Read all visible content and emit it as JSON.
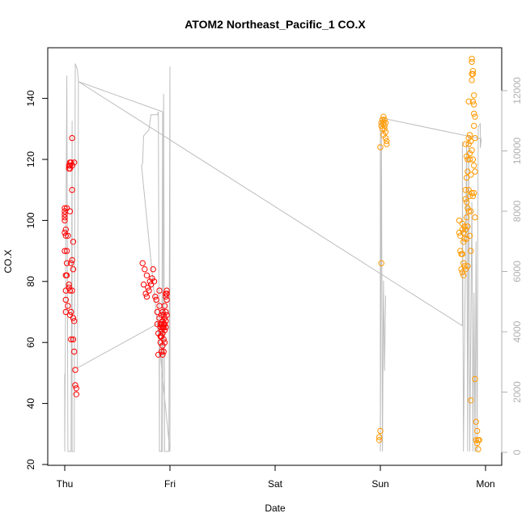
{
  "chart_data": {
    "type": "scatter",
    "title": "ATOM2 Northeast_Pacific_1 CO.X",
    "xlabel": "Date",
    "ylabel": "CO.X",
    "x_ticks": [
      "Thu",
      "Fri",
      "Sat",
      "Sun",
      "Mon"
    ],
    "ylim": [
      20,
      155
    ],
    "y_ticks": [
      20,
      40,
      60,
      80,
      100,
      120,
      140
    ],
    "y2lim": [
      -200,
      13000
    ],
    "y2_ticks": [
      0,
      2000,
      4000,
      6000,
      8000,
      10000,
      12000
    ],
    "colors": {
      "series_a": "#ff0000",
      "series_b": "#ff9900",
      "line": "#bebebe",
      "axis": "#000000",
      "right_axis": "#b0b0b0"
    },
    "series": [
      {
        "color": "#ff0000",
        "points": [
          [
            0.0,
            104
          ],
          [
            0.0,
            103
          ],
          [
            0.0,
            102
          ],
          [
            0.0,
            101
          ],
          [
            0.0,
            100
          ],
          [
            0.0,
            96
          ],
          [
            0.0,
            90
          ],
          [
            0.01,
            97
          ],
          [
            0.01,
            95
          ],
          [
            0.01,
            82
          ],
          [
            0.01,
            77
          ],
          [
            0.01,
            74
          ],
          [
            0.01,
            70
          ],
          [
            0.02,
            104
          ],
          [
            0.02,
            90
          ],
          [
            0.02,
            86
          ],
          [
            0.02,
            82
          ],
          [
            0.03,
            95
          ],
          [
            0.03,
            72
          ],
          [
            0.04,
            118
          ],
          [
            0.04,
            117
          ],
          [
            0.04,
            79
          ],
          [
            0.04,
            78
          ],
          [
            0.05,
            119
          ],
          [
            0.05,
            118
          ],
          [
            0.05,
            117
          ],
          [
            0.05,
            103
          ],
          [
            0.05,
            77
          ],
          [
            0.05,
            69
          ],
          [
            0.06,
            119
          ],
          [
            0.06,
            86
          ],
          [
            0.06,
            70
          ],
          [
            0.06,
            61
          ],
          [
            0.07,
            127
          ],
          [
            0.07,
            118
          ],
          [
            0.07,
            110
          ],
          [
            0.07,
            87
          ],
          [
            0.07,
            77
          ],
          [
            0.08,
            93
          ],
          [
            0.08,
            84
          ],
          [
            0.08,
            68
          ],
          [
            0.08,
            61
          ],
          [
            0.09,
            119
          ],
          [
            0.09,
            67
          ],
          [
            0.09,
            57
          ],
          [
            0.1,
            51
          ],
          [
            0.1,
            46
          ],
          [
            0.11,
            45
          ],
          [
            0.11,
            43
          ],
          [
            0.74,
            86
          ],
          [
            0.75,
            79
          ],
          [
            0.76,
            84
          ],
          [
            0.77,
            76
          ],
          [
            0.78,
            75
          ],
          [
            0.78,
            82
          ],
          [
            0.79,
            78
          ],
          [
            0.8,
            77
          ],
          [
            0.81,
            80
          ],
          [
            0.82,
            79
          ],
          [
            0.83,
            81
          ],
          [
            0.84,
            84
          ],
          [
            0.85,
            80
          ],
          [
            0.86,
            75
          ],
          [
            0.87,
            74
          ],
          [
            0.88,
            70
          ],
          [
            0.88,
            66
          ],
          [
            0.89,
            63
          ],
          [
            0.89,
            56
          ],
          [
            0.9,
            77
          ],
          [
            0.9,
            72
          ],
          [
            0.9,
            68
          ],
          [
            0.91,
            66
          ],
          [
            0.91,
            65
          ],
          [
            0.91,
            62
          ],
          [
            0.91,
            60
          ],
          [
            0.92,
            69
          ],
          [
            0.92,
            66
          ],
          [
            0.92,
            64
          ],
          [
            0.92,
            62
          ],
          [
            0.92,
            57
          ],
          [
            0.93,
            70
          ],
          [
            0.93,
            67
          ],
          [
            0.93,
            65
          ],
          [
            0.93,
            63
          ],
          [
            0.93,
            59
          ],
          [
            0.93,
            56
          ],
          [
            0.94,
            69
          ],
          [
            0.94,
            66
          ],
          [
            0.94,
            65
          ],
          [
            0.94,
            61
          ],
          [
            0.94,
            57
          ],
          [
            0.95,
            72
          ],
          [
            0.95,
            68
          ],
          [
            0.95,
            66
          ],
          [
            0.95,
            64
          ],
          [
            0.95,
            60
          ],
          [
            0.96,
            76
          ],
          [
            0.96,
            75
          ],
          [
            0.96,
            70
          ],
          [
            0.96,
            67
          ],
          [
            0.96,
            65
          ],
          [
            0.97,
            77
          ],
          [
            0.97,
            76
          ],
          [
            0.97,
            74
          ],
          [
            0.97,
            69
          ]
        ]
      },
      {
        "color": "#ff9900",
        "points": [
          [
            2.99,
            29
          ],
          [
            2.99,
            28
          ],
          [
            3.0,
            31
          ],
          [
            3.01,
            86
          ],
          [
            3.0,
            124
          ],
          [
            3.01,
            131
          ],
          [
            3.01,
            132
          ],
          [
            3.02,
            133
          ],
          [
            3.02,
            130
          ],
          [
            3.03,
            134
          ],
          [
            3.03,
            132
          ],
          [
            3.03,
            128
          ],
          [
            3.04,
            133
          ],
          [
            3.04,
            131
          ],
          [
            3.05,
            129
          ],
          [
            3.05,
            127
          ],
          [
            3.06,
            126
          ],
          [
            3.06,
            125
          ],
          [
            3.05,
            132
          ],
          [
            3.04,
            130
          ],
          [
            3.75,
            100
          ],
          [
            3.75,
            96
          ],
          [
            3.76,
            95
          ],
          [
            3.76,
            90
          ],
          [
            3.77,
            89
          ],
          [
            3.77,
            84
          ],
          [
            3.78,
            99
          ],
          [
            3.78,
            97
          ],
          [
            3.78,
            89
          ],
          [
            3.78,
            83
          ],
          [
            3.79,
            96
          ],
          [
            3.79,
            93
          ],
          [
            3.79,
            86
          ],
          [
            3.79,
            82
          ],
          [
            3.8,
            98
          ],
          [
            3.8,
            94
          ],
          [
            3.8,
            85
          ],
          [
            3.81,
            125
          ],
          [
            3.81,
            110
          ],
          [
            3.81,
            107
          ],
          [
            3.81,
            97
          ],
          [
            3.81,
            84
          ],
          [
            3.82,
            121
          ],
          [
            3.82,
            114
          ],
          [
            3.82,
            106
          ],
          [
            3.82,
            101
          ],
          [
            3.82,
            94
          ],
          [
            3.83,
            120
          ],
          [
            3.83,
            116
          ],
          [
            3.83,
            104
          ],
          [
            3.83,
            98
          ],
          [
            3.83,
            85
          ],
          [
            3.84,
            139
          ],
          [
            3.84,
            127
          ],
          [
            3.84,
            125
          ],
          [
            3.84,
            110
          ],
          [
            3.84,
            103
          ],
          [
            3.85,
            128
          ],
          [
            3.85,
            122
          ],
          [
            3.85,
            120
          ],
          [
            3.85,
            108
          ],
          [
            3.85,
            95
          ],
          [
            3.86,
            126
          ],
          [
            3.86,
            115
          ],
          [
            3.86,
            103
          ],
          [
            3.86,
            90
          ],
          [
            3.86,
            41
          ],
          [
            3.87,
            153
          ],
          [
            3.87,
            152
          ],
          [
            3.87,
            148
          ],
          [
            3.87,
            146
          ],
          [
            3.87,
            123
          ],
          [
            3.87,
            109
          ],
          [
            3.88,
            149
          ],
          [
            3.88,
            148
          ],
          [
            3.88,
            139
          ],
          [
            3.88,
            120
          ],
          [
            3.88,
            108
          ],
          [
            3.89,
            141
          ],
          [
            3.89,
            138
          ],
          [
            3.89,
            135
          ],
          [
            3.89,
            131
          ],
          [
            3.89,
            118
          ],
          [
            3.89,
            109
          ],
          [
            3.9,
            134
          ],
          [
            3.9,
            127
          ],
          [
            3.9,
            116
          ],
          [
            3.9,
            101
          ],
          [
            3.9,
            48
          ],
          [
            3.91,
            34
          ],
          [
            3.91,
            28
          ],
          [
            3.92,
            31
          ],
          [
            3.92,
            27
          ],
          [
            3.93,
            28
          ],
          [
            3.93,
            25
          ],
          [
            3.94,
            28
          ]
        ]
      }
    ],
    "line": {
      "axis": "right",
      "color": "#bebebe",
      "points": [
        [
          0.0,
          2600
        ],
        [
          0.0,
          30
        ],
        [
          0.02,
          12500
        ],
        [
          0.03,
          30
        ],
        [
          0.06,
          30
        ],
        [
          0.07,
          11000
        ],
        [
          0.07,
          30
        ],
        [
          0.09,
          30
        ],
        [
          0.1,
          12900
        ],
        [
          0.12,
          12700
        ],
        [
          0.13,
          12300
        ],
        [
          0.12,
          2800
        ],
        [
          0.9,
          4300
        ],
        [
          0.9,
          30
        ],
        [
          0.93,
          30
        ],
        [
          0.94,
          11900
        ],
        [
          0.95,
          30
        ],
        [
          0.99,
          30
        ],
        [
          1.0,
          12800
        ],
        [
          1.0,
          30
        ],
        [
          0.73,
          9500
        ],
        [
          0.74,
          9600
        ],
        [
          0.75,
          10500
        ],
        [
          0.8,
          10700
        ],
        [
          0.82,
          11200
        ],
        [
          0.86,
          11200
        ],
        [
          0.88,
          11200
        ],
        [
          0.89,
          11300
        ],
        [
          0.9,
          30
        ],
        [
          0.92,
          30
        ],
        [
          0.93,
          11300
        ],
        [
          0.13,
          12300
        ],
        [
          3.78,
          4200
        ],
        [
          3.78,
          10300
        ],
        [
          3.79,
          30
        ],
        [
          3.82,
          10200
        ],
        [
          3.83,
          30
        ],
        [
          3.84,
          10500
        ],
        [
          3.85,
          30
        ],
        [
          3.87,
          8300
        ],
        [
          3.88,
          30
        ],
        [
          3.89,
          5300
        ],
        [
          3.9,
          30
        ],
        [
          3.91,
          7000
        ],
        [
          3.92,
          30
        ],
        [
          3.93,
          10800
        ],
        [
          3.95,
          10900
        ],
        [
          3.95,
          10100
        ],
        [
          3.96,
          10400
        ],
        [
          3.0,
          11100
        ],
        [
          3.0,
          30
        ],
        [
          3.01,
          10700
        ],
        [
          3.02,
          30
        ],
        [
          3.03,
          5700
        ],
        [
          3.04,
          2700
        ],
        [
          3.05,
          5200
        ]
      ]
    }
  }
}
